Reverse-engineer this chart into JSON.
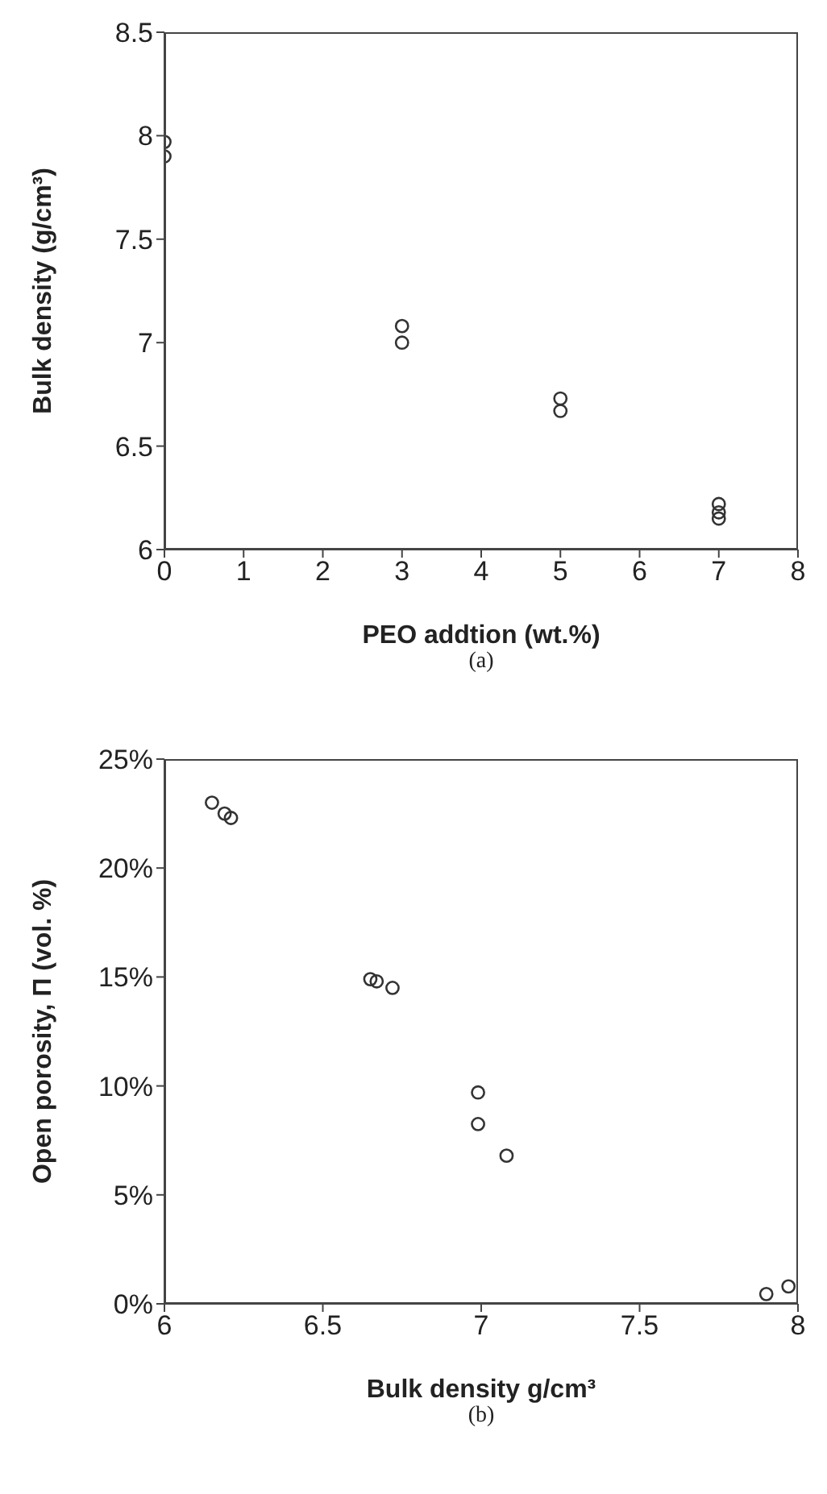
{
  "chart_data": [
    {
      "type": "scatter",
      "xlabel": "PEO addtion (wt.%)",
      "ylabel": "Bulk density (g/cm³)",
      "annotations": [
        "(a)"
      ],
      "marker": "circle",
      "x": [
        0,
        0,
        3,
        3,
        5,
        5,
        7,
        7,
        7
      ],
      "series": [
        {
          "color": "#333333",
          "values": [
            7.97,
            7.9,
            7.08,
            7.0,
            6.73,
            6.67,
            6.22,
            6.18,
            6.15
          ]
        }
      ],
      "xlim": [
        0,
        8
      ],
      "xticks": [
        0,
        1,
        2,
        3,
        4,
        5,
        6,
        7,
        8
      ],
      "ylim": [
        6,
        8.5
      ],
      "yticks": [
        6,
        6.5,
        7,
        7.5,
        8,
        8.5
      ]
    },
    {
      "type": "scatter",
      "xlabel": "Bulk density g/cm³",
      "ylabel": "Open porosity, Π (vol. %)",
      "annotations": [
        "(b)"
      ],
      "marker": "circle",
      "x": [
        6.15,
        6.19,
        6.21,
        6.65,
        6.67,
        6.72,
        6.99,
        6.99,
        7.08,
        7.9,
        7.97
      ],
      "series": [
        {
          "color": "#333333",
          "values": [
            23.0,
            22.5,
            22.3,
            14.9,
            14.8,
            14.5,
            9.7,
            8.25,
            6.8,
            0.45,
            0.8
          ]
        }
      ],
      "xlim": [
        6,
        8
      ],
      "xticks": [
        6,
        6.5,
        7,
        7.5,
        8
      ],
      "ylim": [
        0,
        25
      ],
      "yticks": [
        {
          "value": 0,
          "label": "0%"
        },
        {
          "value": 5,
          "label": "5%"
        },
        {
          "value": 10,
          "label": "10%"
        },
        {
          "value": 15,
          "label": "15%"
        },
        {
          "value": 20,
          "label": "20%"
        },
        {
          "value": 25,
          "label": "25%"
        }
      ]
    }
  ]
}
